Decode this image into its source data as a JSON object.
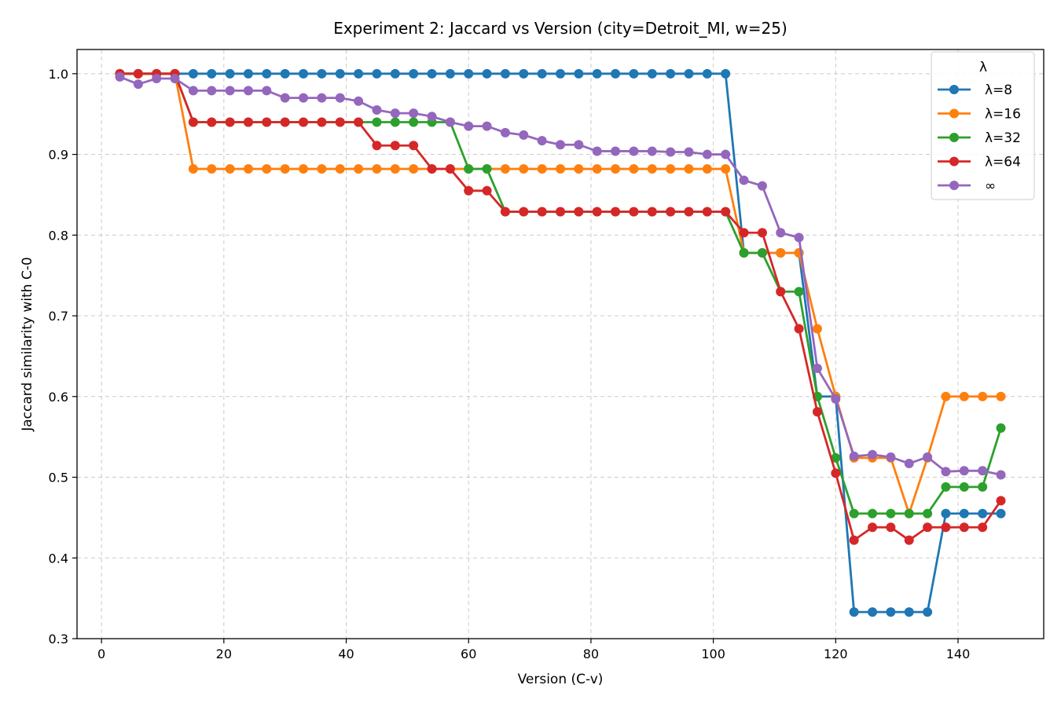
{
  "chart_data": {
    "type": "line",
    "title": "Experiment 2: Jaccard vs Version  (city=Detroit_MI, w=25)",
    "xlabel": "Version (C-v)",
    "ylabel": "Jaccard similarity with C-0",
    "xlim": [
      -4,
      154
    ],
    "ylim": [
      0.3,
      1.03
    ],
    "xticks": [
      0,
      20,
      40,
      60,
      80,
      100,
      120,
      140
    ],
    "yticks": [
      0.3,
      0.4,
      0.5,
      0.6,
      0.7,
      0.8,
      0.9,
      1.0
    ],
    "grid": true,
    "legend": {
      "title": "λ",
      "placement": "top-right"
    },
    "x": [
      3,
      6,
      9,
      12,
      15,
      18,
      21,
      24,
      27,
      30,
      33,
      36,
      39,
      42,
      45,
      48,
      51,
      54,
      57,
      60,
      63,
      66,
      69,
      72,
      75,
      78,
      81,
      84,
      87,
      90,
      93,
      96,
      99,
      102,
      105,
      108,
      111,
      114,
      117,
      120,
      123,
      126,
      129,
      132,
      135,
      138,
      141,
      144,
      147
    ],
    "series": [
      {
        "name": "λ=8",
        "color": "#1f77b4",
        "values": [
          1.0,
          1.0,
          1.0,
          1.0,
          1.0,
          1.0,
          1.0,
          1.0,
          1.0,
          1.0,
          1.0,
          1.0,
          1.0,
          1.0,
          1.0,
          1.0,
          1.0,
          1.0,
          1.0,
          1.0,
          1.0,
          1.0,
          1.0,
          1.0,
          1.0,
          1.0,
          1.0,
          1.0,
          1.0,
          1.0,
          1.0,
          1.0,
          1.0,
          1.0,
          0.778,
          0.778,
          0.778,
          0.778,
          0.6,
          0.6,
          0.333,
          0.333,
          0.333,
          0.333,
          0.333,
          0.455,
          0.455,
          0.455,
          0.455
        ]
      },
      {
        "name": "λ=16",
        "color": "#ff7f0e",
        "values": [
          1.0,
          1.0,
          1.0,
          1.0,
          0.882,
          0.882,
          0.882,
          0.882,
          0.882,
          0.882,
          0.882,
          0.882,
          0.882,
          0.882,
          0.882,
          0.882,
          0.882,
          0.882,
          0.882,
          0.882,
          0.882,
          0.882,
          0.882,
          0.882,
          0.882,
          0.882,
          0.882,
          0.882,
          0.882,
          0.882,
          0.882,
          0.882,
          0.882,
          0.882,
          0.778,
          0.778,
          0.778,
          0.778,
          0.684,
          0.6,
          0.524,
          0.524,
          0.524,
          0.455,
          0.524,
          0.6,
          0.6,
          0.6,
          0.6
        ]
      },
      {
        "name": "λ=32",
        "color": "#2ca02c",
        "values": [
          1.0,
          1.0,
          1.0,
          1.0,
          0.94,
          0.94,
          0.94,
          0.94,
          0.94,
          0.94,
          0.94,
          0.94,
          0.94,
          0.94,
          0.94,
          0.94,
          0.94,
          0.94,
          0.94,
          0.882,
          0.882,
          0.829,
          0.829,
          0.829,
          0.829,
          0.829,
          0.829,
          0.829,
          0.829,
          0.829,
          0.829,
          0.829,
          0.829,
          0.829,
          0.778,
          0.778,
          0.73,
          0.73,
          0.6,
          0.524,
          0.455,
          0.455,
          0.455,
          0.455,
          0.455,
          0.488,
          0.488,
          0.488,
          0.561
        ]
      },
      {
        "name": "λ=64",
        "color": "#d62728",
        "values": [
          1.0,
          1.0,
          1.0,
          1.0,
          0.94,
          0.94,
          0.94,
          0.94,
          0.94,
          0.94,
          0.94,
          0.94,
          0.94,
          0.94,
          0.911,
          0.911,
          0.911,
          0.882,
          0.882,
          0.855,
          0.855,
          0.829,
          0.829,
          0.829,
          0.829,
          0.829,
          0.829,
          0.829,
          0.829,
          0.829,
          0.829,
          0.829,
          0.829,
          0.829,
          0.803,
          0.803,
          0.73,
          0.684,
          0.581,
          0.505,
          0.422,
          0.438,
          0.438,
          0.422,
          0.438,
          0.438,
          0.438,
          0.438,
          0.471
        ]
      },
      {
        "name": "∞",
        "color": "#9467bd",
        "values": [
          0.996,
          0.987,
          0.994,
          0.994,
          0.979,
          0.979,
          0.979,
          0.979,
          0.979,
          0.97,
          0.97,
          0.97,
          0.97,
          0.966,
          0.955,
          0.951,
          0.951,
          0.947,
          0.94,
          0.935,
          0.935,
          0.927,
          0.924,
          0.917,
          0.912,
          0.912,
          0.904,
          0.904,
          0.904,
          0.904,
          0.903,
          0.903,
          0.9,
          0.9,
          0.868,
          0.861,
          0.803,
          0.797,
          0.635,
          0.597,
          0.526,
          0.528,
          0.525,
          0.517,
          0.525,
          0.507,
          0.508,
          0.508,
          0.503
        ]
      }
    ]
  }
}
